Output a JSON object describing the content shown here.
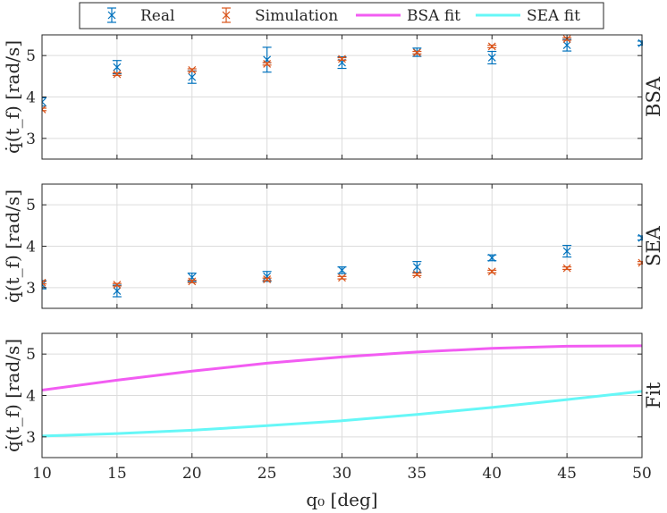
{
  "chart_data": {
    "type": "scatter",
    "legend": {
      "placement": "top",
      "entries": [
        {
          "name": "Real",
          "marker": "errorbar-x",
          "color": "#0072bd"
        },
        {
          "name": "Simulation",
          "marker": "errorbar-x",
          "color": "#d95319"
        },
        {
          "name": "BSA fit",
          "marker": "line",
          "color": "#f25cf2"
        },
        {
          "name": "SEA fit",
          "marker": "line",
          "color": "#66f7f7"
        }
      ]
    },
    "xlabel": "q₀ [deg]",
    "xlim": [
      10,
      50
    ],
    "xticks": [
      "10",
      "15",
      "20",
      "25",
      "30",
      "35",
      "40",
      "45",
      "50"
    ],
    "grid": true,
    "panels": [
      {
        "side_label": "BSA",
        "ylabel": "q̇(t_f) [rad/s]",
        "ylim": [
          2.5,
          5.5
        ],
        "yticks": [
          "3",
          "4",
          "5"
        ],
        "series": [
          {
            "name": "Real",
            "color": "#0072bd",
            "x": [
              10,
              15,
              20,
              25,
              30,
              35,
              40,
              45,
              50
            ],
            "y": [
              3.88,
              4.72,
              4.48,
              4.9,
              4.83,
              5.08,
              4.95,
              5.25,
              5.3
            ],
            "err": [
              0.1,
              0.16,
              0.15,
              0.3,
              0.14,
              0.1,
              0.15,
              0.14,
              0.05
            ]
          },
          {
            "name": "Simulation",
            "color": "#d95319",
            "x": [
              10,
              15,
              20,
              25,
              30,
              35,
              40,
              45
            ],
            "y": [
              3.7,
              4.55,
              4.65,
              4.8,
              4.92,
              5.07,
              5.22,
              5.4
            ],
            "err": [
              0.03,
              0.03,
              0.03,
              0.03,
              0.03,
              0.03,
              0.03,
              0.03
            ]
          }
        ]
      },
      {
        "side_label": "SEA",
        "ylabel": "q̇(t_f) [rad/s]",
        "ylim": [
          2.5,
          5.5
        ],
        "yticks": [
          "3",
          "4",
          "5"
        ],
        "series": [
          {
            "name": "Real",
            "color": "#0072bd",
            "x": [
              10,
              15,
              20,
              25,
              30,
              35,
              40,
              45,
              50
            ],
            "y": [
              3.07,
              2.92,
              3.25,
              3.27,
              3.42,
              3.5,
              3.72,
              3.88,
              4.2
            ],
            "err": [
              0.1,
              0.14,
              0.1,
              0.12,
              0.08,
              0.13,
              0.07,
              0.14,
              0.05
            ]
          },
          {
            "name": "Simulation",
            "color": "#d95319",
            "x": [
              10,
              15,
              20,
              25,
              30,
              35,
              40,
              45,
              50
            ],
            "y": [
              3.12,
              3.07,
              3.15,
              3.2,
              3.24,
              3.32,
              3.39,
              3.47,
              3.6
            ],
            "err": [
              0.03,
              0.03,
              0.03,
              0.03,
              0.03,
              0.03,
              0.03,
              0.03,
              0.03
            ]
          }
        ]
      },
      {
        "side_label": "Fit",
        "ylabel": "q̇(t_f) [rad/s]",
        "ylim": [
          2.5,
          5.5
        ],
        "yticks": [
          "3",
          "4",
          "5"
        ],
        "lines": [
          {
            "name": "BSA fit",
            "color": "#f25cf2",
            "x": [
              10,
              15,
              20,
              25,
              30,
              35,
              40,
              45,
              50
            ],
            "y": [
              4.13,
              4.37,
              4.59,
              4.78,
              4.93,
              5.05,
              5.14,
              5.19,
              5.2
            ]
          },
          {
            "name": "SEA fit",
            "color": "#66f7f7",
            "x": [
              10,
              15,
              20,
              25,
              30,
              35,
              40,
              45,
              50
            ],
            "y": [
              3.02,
              3.08,
              3.16,
              3.27,
              3.39,
              3.54,
              3.71,
              3.9,
              4.1
            ]
          }
        ]
      }
    ]
  }
}
